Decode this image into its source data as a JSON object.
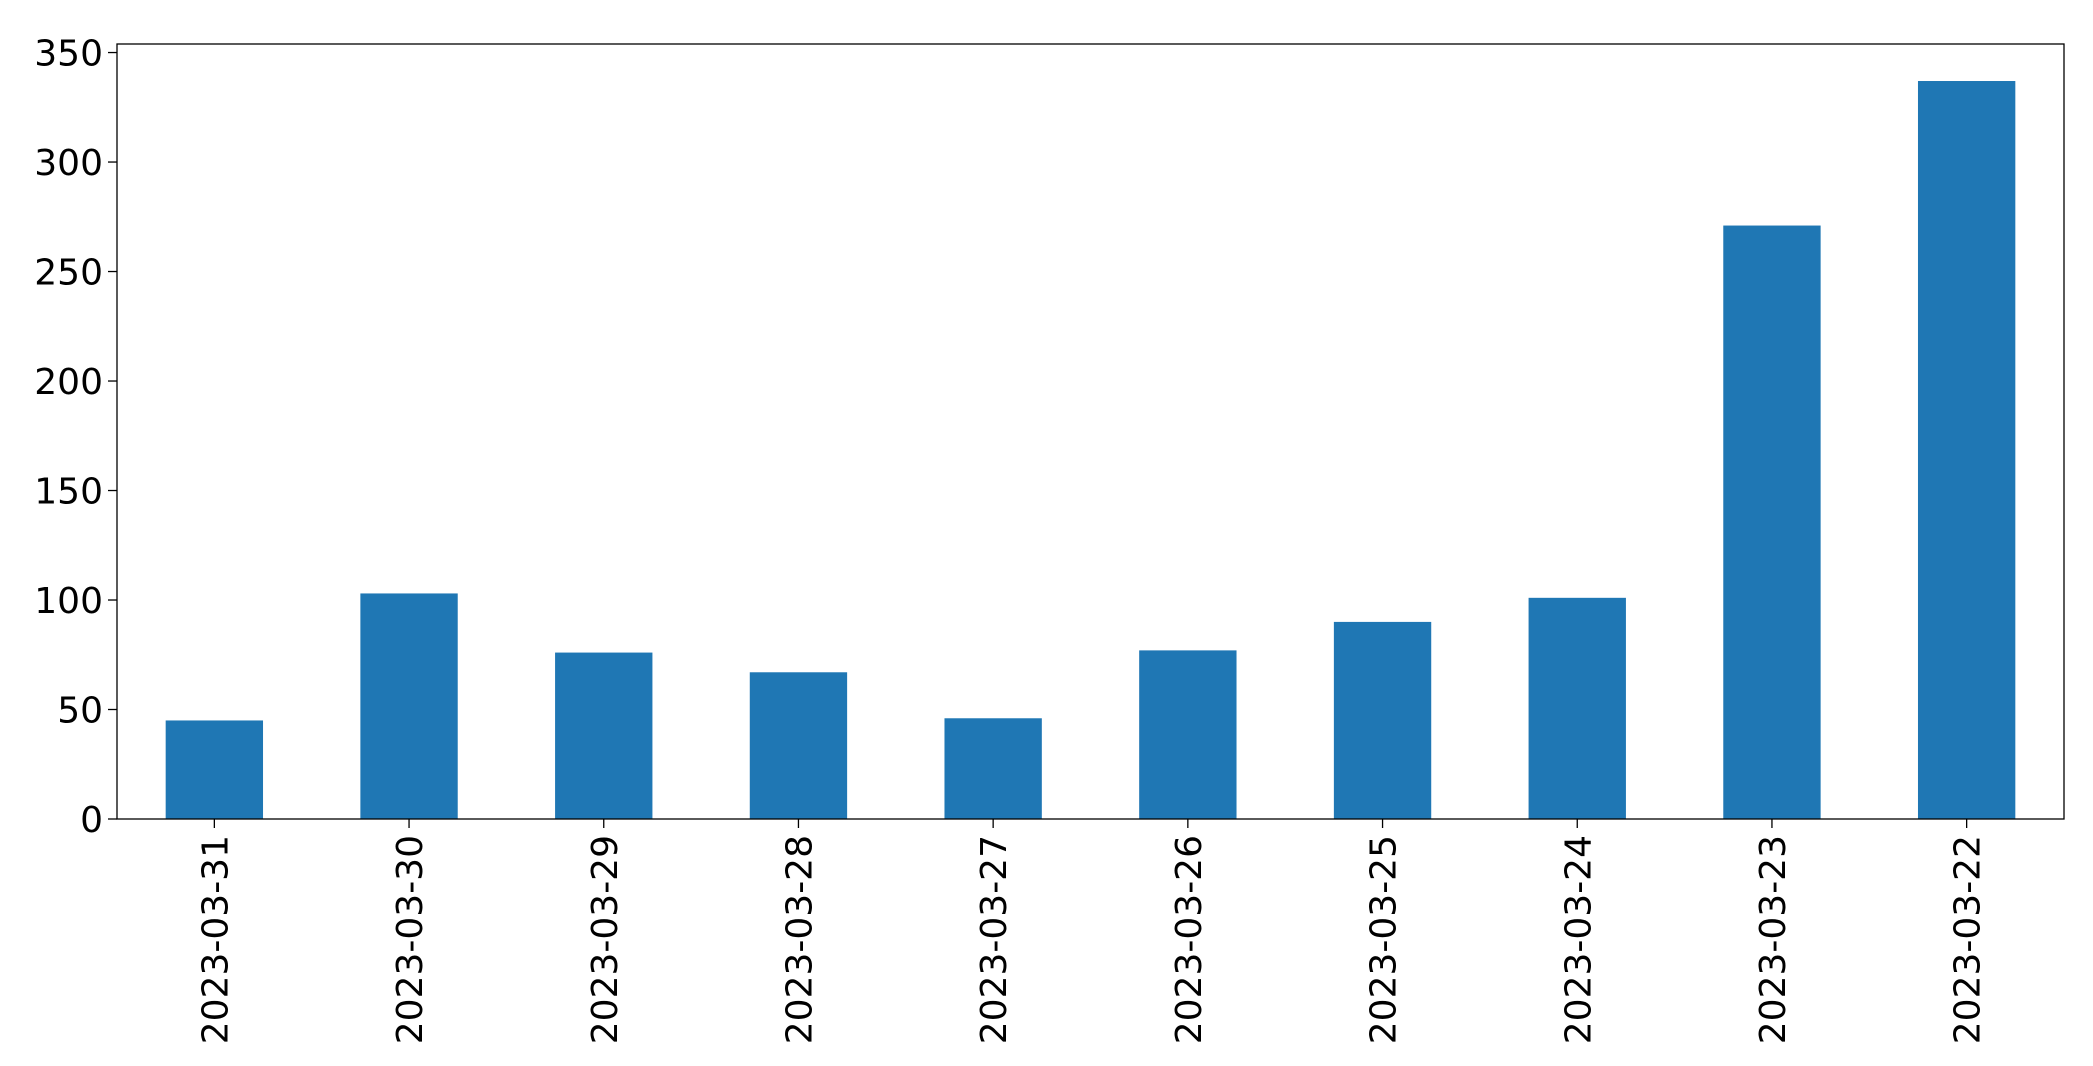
{
  "chart_data": {
    "type": "bar",
    "categories": [
      "2023-03-31",
      "2023-03-30",
      "2023-03-29",
      "2023-03-28",
      "2023-03-27",
      "2023-03-26",
      "2023-03-25",
      "2023-03-24",
      "2023-03-23",
      "2023-03-22"
    ],
    "values": [
      45,
      103,
      76,
      67,
      46,
      77,
      90,
      101,
      271,
      337
    ],
    "color": "#1f77b4",
    "ylim": [
      0,
      353.9
    ],
    "yticks": [
      0,
      50,
      100,
      150,
      200,
      250,
      300,
      350
    ],
    "grid": false
  }
}
